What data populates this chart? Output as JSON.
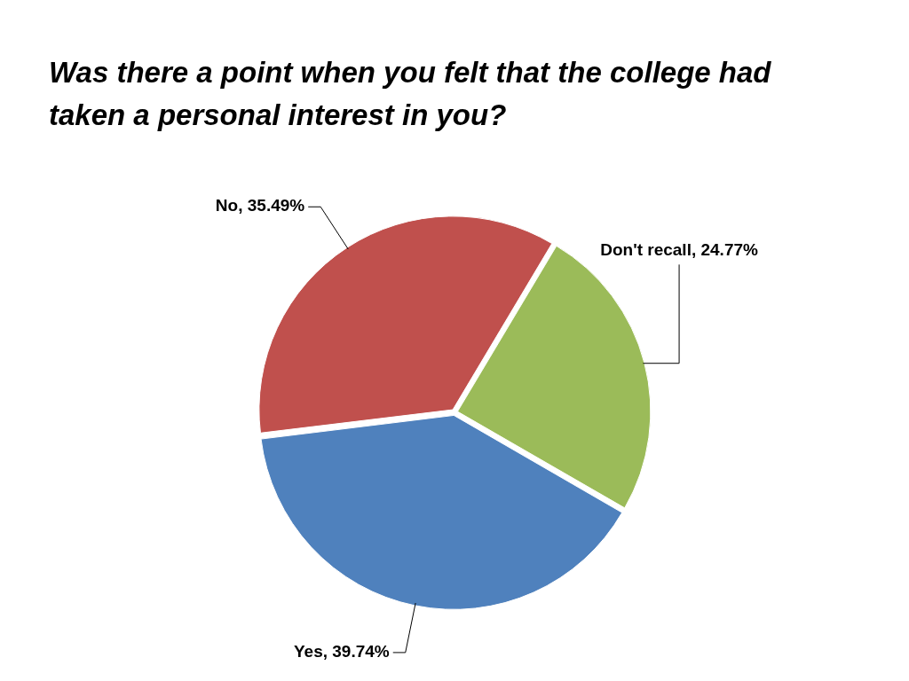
{
  "chart_data": {
    "type": "pie",
    "title": "Was there a point when you felt that the college had taken a personal interest in you?",
    "categories": [
      "Yes",
      "No",
      "Don't recall"
    ],
    "values": [
      39.74,
      35.49,
      24.77
    ],
    "colors": [
      "#4f81bd",
      "#c0504d",
      "#9bbb59"
    ],
    "value_labels": [
      ", 39.74%",
      ", 35.49%",
      ", 24.77%"
    ],
    "legend": false
  }
}
